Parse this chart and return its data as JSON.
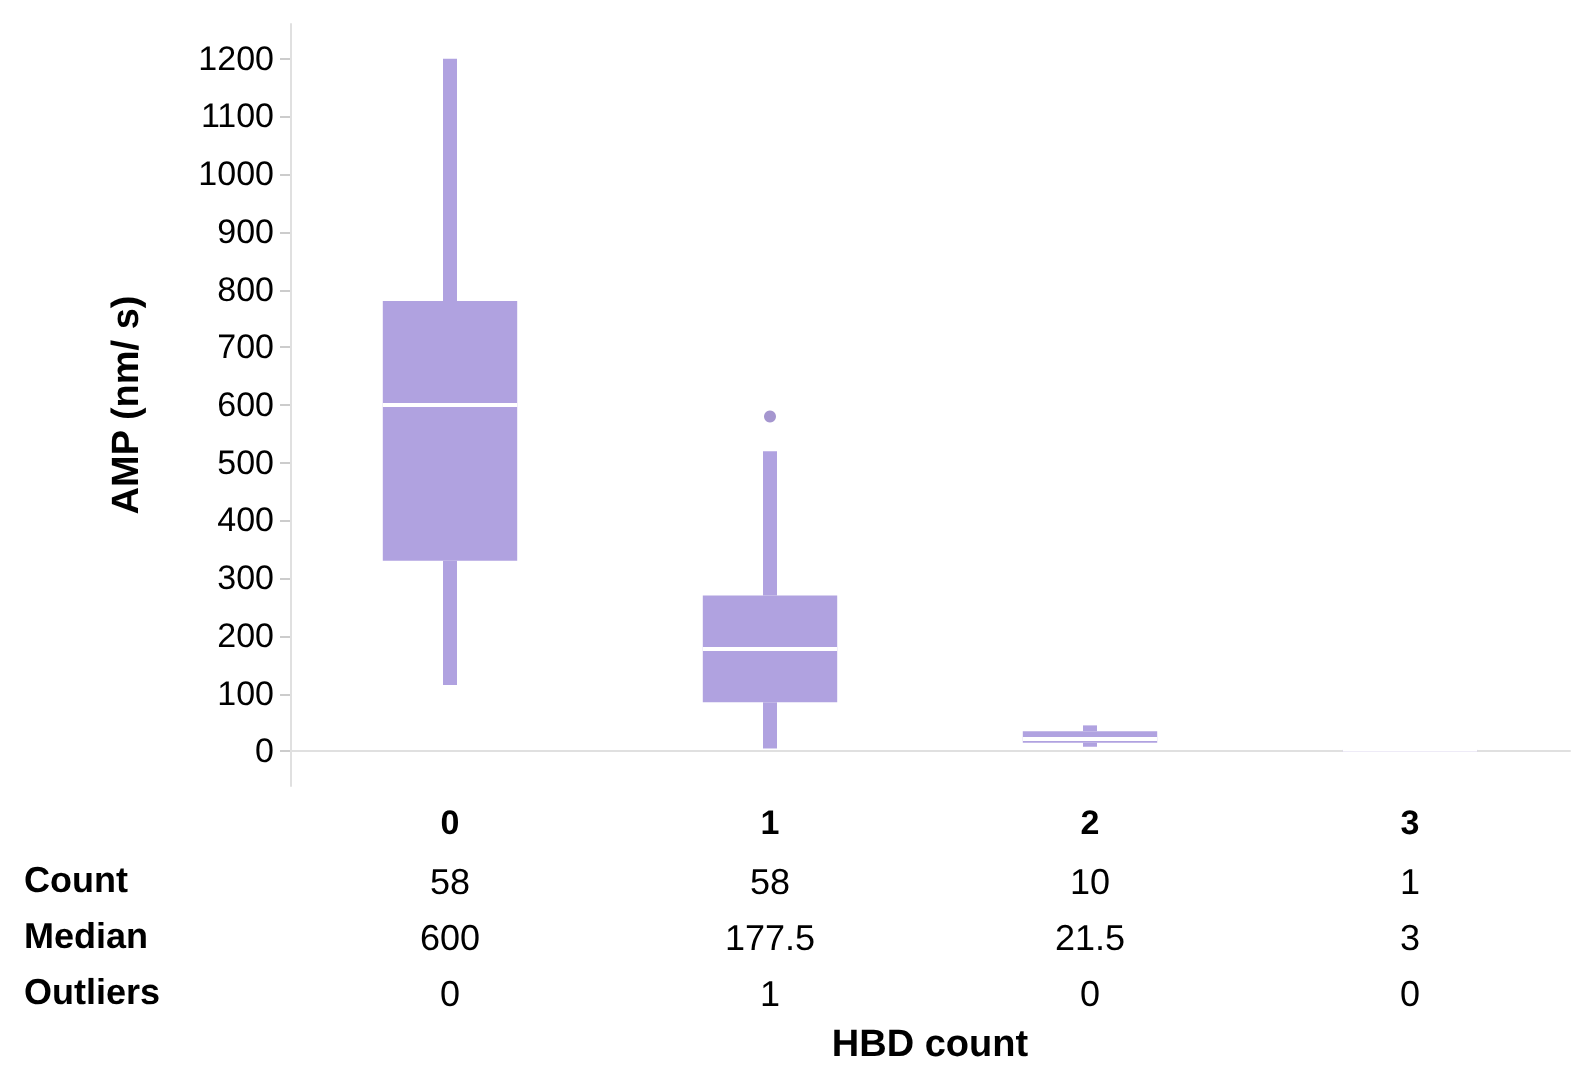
{
  "chart_data": {
    "type": "box",
    "categories": [
      "0",
      "1",
      "2",
      "3"
    ],
    "xlabel": "HBD count",
    "ylabel": "AMP (nm/ s)",
    "color": "#b0a2e0",
    "ylim": [
      -60,
      1260
    ],
    "yticks": [
      0,
      100,
      200,
      300,
      400,
      500,
      600,
      700,
      800,
      900,
      1000,
      1100,
      1200
    ],
    "grid": false,
    "boxes": [
      {
        "low": 115,
        "q1": 330,
        "median": 600,
        "q3": 780,
        "high": 1200
      },
      {
        "low": 5,
        "q1": 85,
        "median": 177.5,
        "q3": 270,
        "high": 520,
        "outliers": [
          580
        ]
      },
      {
        "low": 8,
        "q1": 15,
        "median": 21.5,
        "q3": 35,
        "high": 45
      },
      {
        "low": 3,
        "q1": 3,
        "median": 3,
        "q3": 3,
        "high": 3
      }
    ],
    "annotations": [
      "Count",
      "58",
      "58",
      "10",
      "1",
      "Median",
      "600",
      "177.5",
      "21.5",
      "3",
      "Outliers",
      "0",
      "1",
      "0",
      "0"
    ]
  }
}
